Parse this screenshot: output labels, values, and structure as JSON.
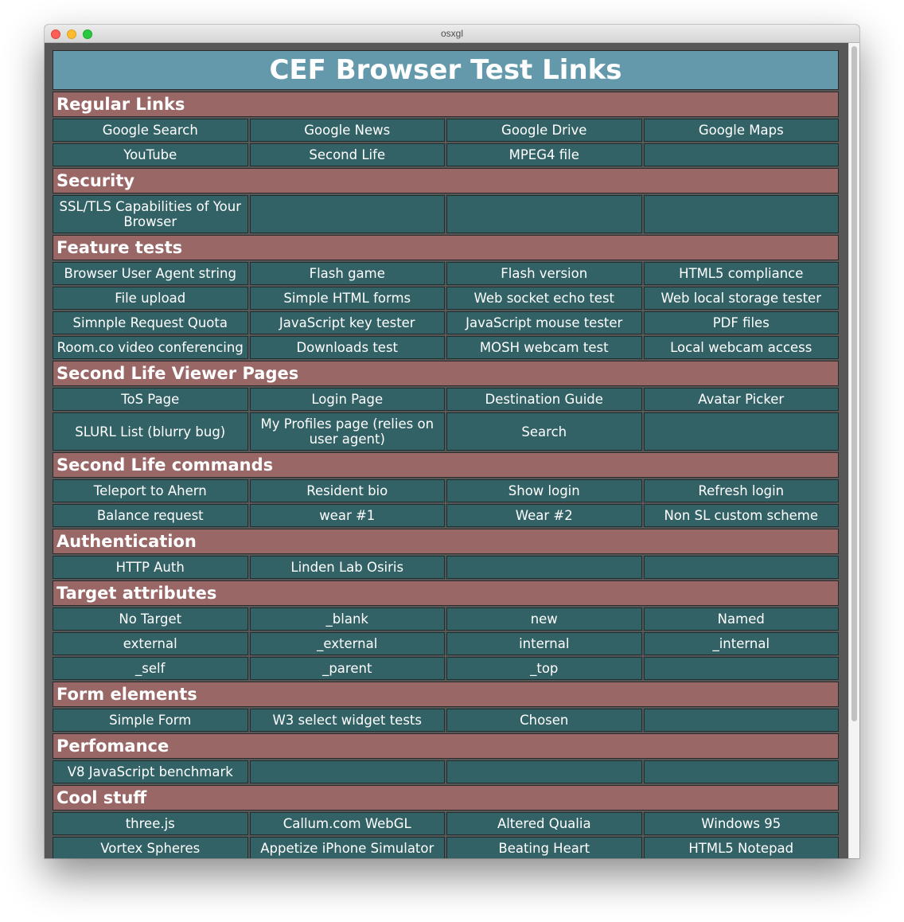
{
  "window": {
    "title": "osxgl"
  },
  "page": {
    "heading": "CEF Browser Test Links",
    "sections": [
      {
        "title": "Regular Links",
        "rows": [
          [
            "Google Search",
            "Google News",
            "Google Drive",
            "Google Maps"
          ],
          [
            "YouTube",
            "Second Life",
            "MPEG4 file",
            ""
          ]
        ]
      },
      {
        "title": "Security",
        "rows": [
          [
            "SSL/TLS Capabilities of Your Browser",
            "",
            "",
            ""
          ]
        ]
      },
      {
        "title": "Feature tests",
        "rows": [
          [
            "Browser User Agent string",
            "Flash game",
            "Flash version",
            "HTML5 compliance"
          ],
          [
            "File upload",
            "Simple HTML forms",
            "Web socket echo test",
            "Web local storage tester"
          ],
          [
            "Simnple Request Quota",
            "JavaScript key tester",
            "JavaScript mouse tester",
            "PDF files"
          ],
          [
            "Room.co video conferencing",
            "Downloads test",
            "MOSH webcam test",
            "Local webcam access"
          ]
        ]
      },
      {
        "title": "Second Life Viewer Pages",
        "rows": [
          [
            "ToS Page",
            "Login Page",
            "Destination Guide",
            "Avatar Picker"
          ],
          [
            "SLURL List (blurry bug)",
            "My Profiles page (relies on user agent)",
            "Search",
            ""
          ]
        ]
      },
      {
        "title": "Second Life commands",
        "rows": [
          [
            "Teleport to Ahern",
            "Resident bio",
            "Show login",
            "Refresh login"
          ],
          [
            "Balance request",
            "wear #1",
            "Wear #2",
            "Non SL custom scheme"
          ]
        ]
      },
      {
        "title": "Authentication",
        "rows": [
          [
            "HTTP Auth",
            "Linden Lab Osiris",
            "",
            ""
          ]
        ]
      },
      {
        "title": "Target attributes",
        "rows": [
          [
            "No Target",
            "_blank",
            "new",
            "Named"
          ],
          [
            "external",
            "_external",
            "internal",
            "_internal"
          ],
          [
            "_self",
            "_parent",
            "_top",
            ""
          ]
        ]
      },
      {
        "title": "Form elements",
        "rows": [
          [
            "Simple Form",
            "W3 select widget tests",
            "Chosen",
            ""
          ]
        ]
      },
      {
        "title": "Perfomance",
        "rows": [
          [
            "V8 JavaScript benchmark",
            "",
            "",
            ""
          ]
        ]
      },
      {
        "title": "Cool stuff",
        "rows": [
          [
            "three.js",
            "Callum.com WebGL",
            "Altered Qualia",
            "Windows 95"
          ],
          [
            "Vortex Spheres",
            "Appetize iPhone Simulator",
            "Beating Heart",
            "HTML5 Notepad"
          ]
        ]
      }
    ]
  }
}
